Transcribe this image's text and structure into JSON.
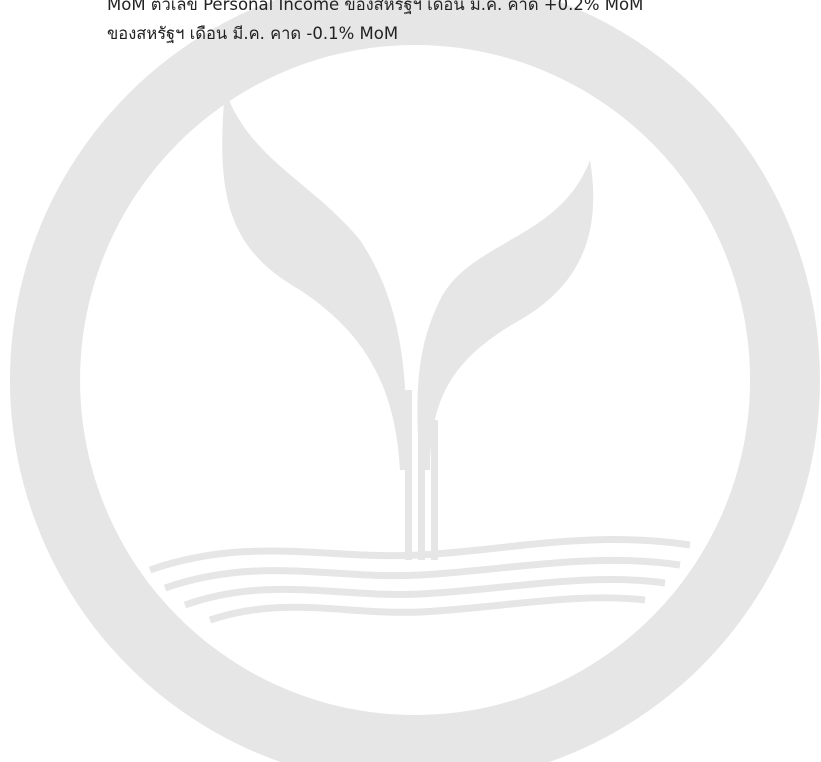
{
  "text": {
    "lines": [
      "MoM ตัวเลข Personal Income ของสหรัฐฯ เดือน มี.ค. คาด +0.2% MoM",
      "ของสหรัฐฯ เดือน มี.ค. คาด -0.1% MoM"
    ]
  }
}
